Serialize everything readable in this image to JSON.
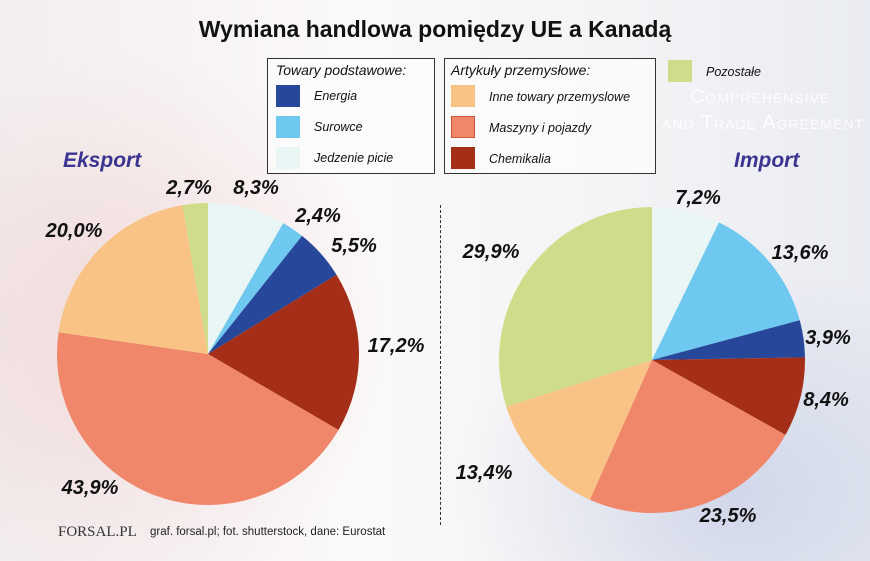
{
  "title": "Wymiana handlowa pomiędzy UE a Kanadą",
  "watermark": [
    "Comprehensive",
    "and Trade Agreement"
  ],
  "legend": {
    "group1": {
      "heading": "Towary podstawowe:",
      "items": [
        "Energia",
        "Surowce",
        "Jedzenie picie"
      ]
    },
    "group2": {
      "heading": "Artykuły przemysłowe:",
      "items": [
        "Inne towary przemyslowe",
        "Maszyny i pojazdy",
        "Chemikalia"
      ]
    },
    "other": "Pozostałe"
  },
  "colors": {
    "Energia": "#27479a",
    "Surowce": "#6ec8ef",
    "Jedzenie picie": "#eaf5f5",
    "Inne towary przemyslowe": "#f9c386",
    "Maszyny i pojazdy": "#f0866a",
    "Chemikalia": "#a42e17",
    "Pozostałe": "#cfdd8a"
  },
  "footer": {
    "logo": "FORSAL.PL",
    "source": "graf. forsal.pl; fot. shutterstock, dane: Eurostat"
  },
  "chart_data": [
    {
      "type": "pie",
      "title": "Eksport",
      "start": "top",
      "direction": "clockwise",
      "categories": [
        "Jedzenie picie",
        "Surowce",
        "Energia",
        "Chemikalia",
        "Maszyny i pojazdy",
        "Inne towary przemyslowe",
        "Pozostałe"
      ],
      "values": [
        8.3,
        2.4,
        5.5,
        17.2,
        43.9,
        20.0,
        2.7
      ],
      "labels": [
        "8,3%",
        "2,4%",
        "5,5%",
        "17,2%",
        "43,9%",
        "20,0%",
        "2,7%"
      ]
    },
    {
      "type": "pie",
      "title": "Import",
      "start": "top",
      "direction": "clockwise",
      "categories": [
        "Jedzenie picie",
        "Surowce",
        "Energia",
        "Chemikalia",
        "Maszyny i pojazdy",
        "Inne towary przemyslowe",
        "Pozostałe"
      ],
      "values": [
        7.2,
        13.6,
        3.9,
        8.4,
        23.5,
        13.4,
        29.9
      ],
      "labels": [
        "7,2%",
        "13,6%",
        "3,9%",
        "8,4%",
        "23,5%",
        "13,4%",
        "29,9%"
      ]
    }
  ]
}
